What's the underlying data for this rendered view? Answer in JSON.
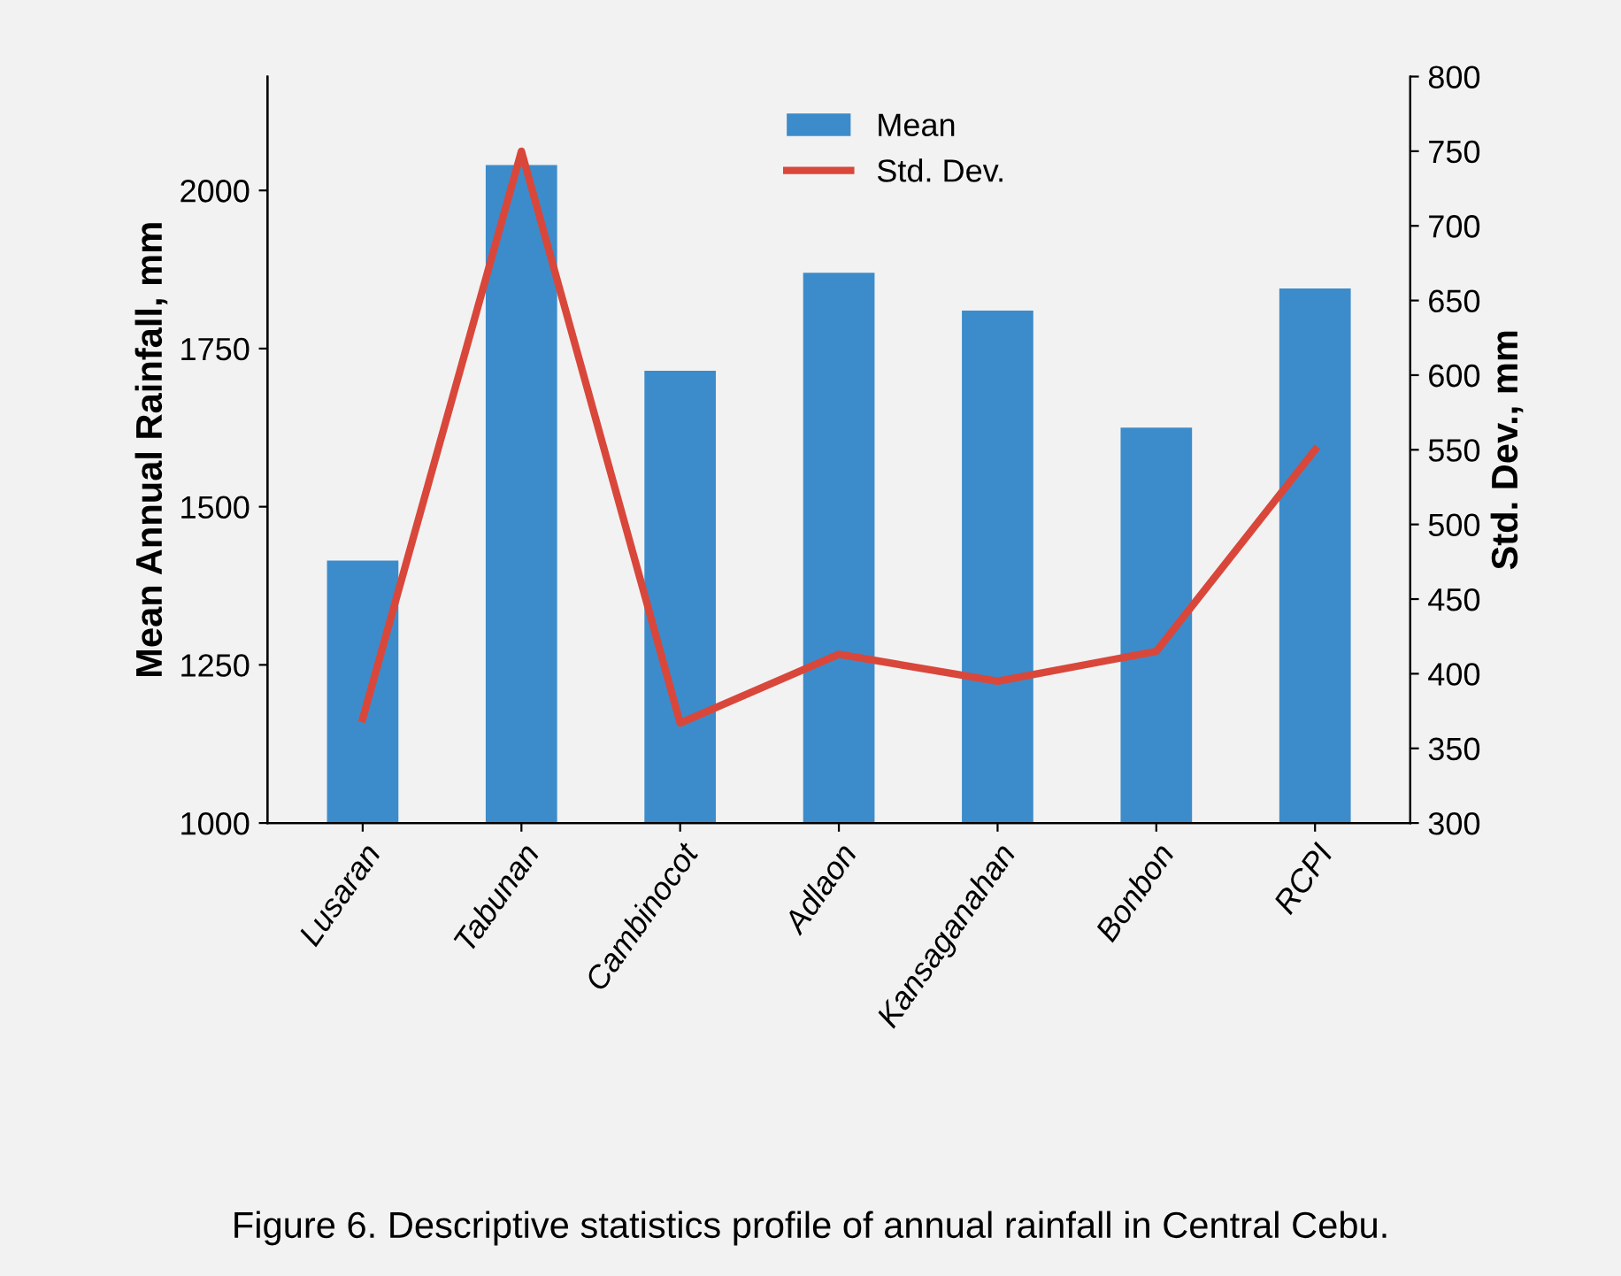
{
  "chart_data": {
    "type": "bar",
    "categories": [
      "Lusaran",
      "Tabunan",
      "Cambinocot",
      "Adlaon",
      "Kansaganahan",
      "Bonbon",
      "RCPI"
    ],
    "series": [
      {
        "name": "Mean",
        "color": "#3c8ccb",
        "values": [
          1415,
          2040,
          1715,
          1870,
          1810,
          1625,
          1845
        ]
      },
      {
        "name": "Std. Dev.",
        "type": "line",
        "axis": "y2",
        "color": "#d9473b",
        "values": [
          370,
          750,
          367,
          413,
          395,
          415,
          550
        ]
      }
    ],
    "ylabel": "Mean Annual Rainfall, mm",
    "y2label": "Std. Dev., mm",
    "ylim": [
      1000,
      2180
    ],
    "yticks": [
      1000,
      1250,
      1500,
      1750,
      2000
    ],
    "y2lim": [
      300,
      800
    ],
    "y2ticks": [
      300,
      350,
      400,
      450,
      500,
      550,
      600,
      650,
      700,
      750,
      800
    ],
    "legend": "top",
    "grid": false,
    "marker": "none",
    "line_style": "solid",
    "annotations": [
      "Figure 6. Descriptive statistics profile of annual rainfall in Central Cebu."
    ]
  }
}
